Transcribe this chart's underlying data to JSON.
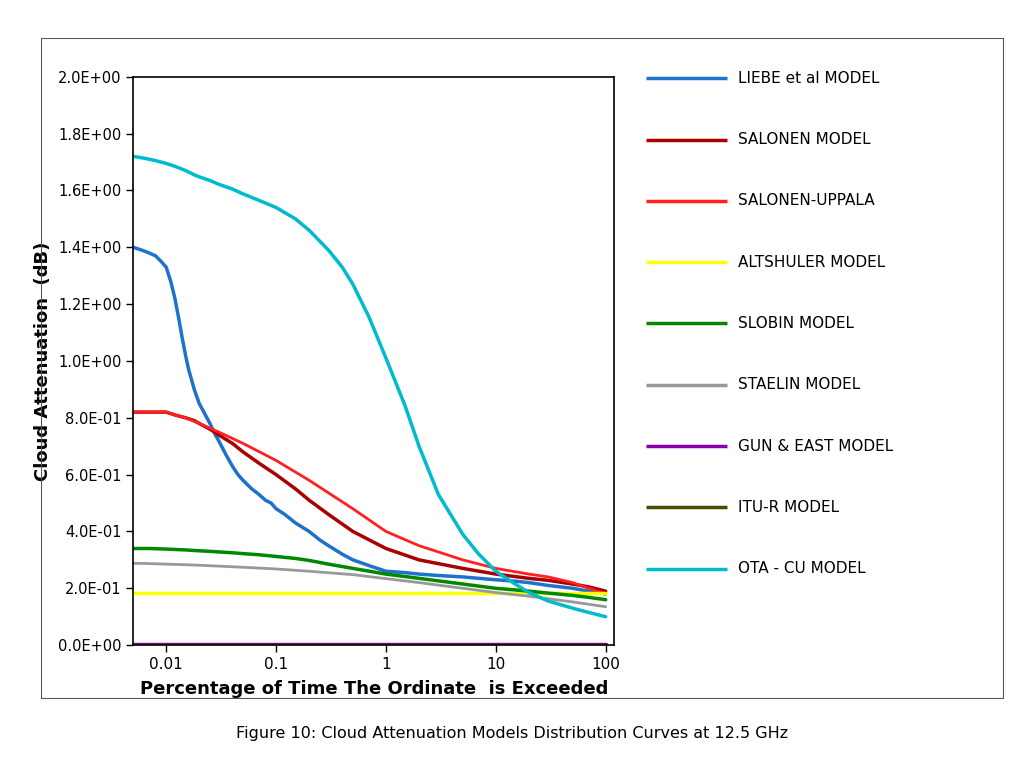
{
  "title": "Figure 10: Cloud Attenuation Models Distribution Curves at 12.5 GHz",
  "xlabel": "Percentage of Time The Ordinate  is Exceeded",
  "ylabel": "Cloud Attenuation  (dB)",
  "ylim": [
    0.0,
    2.0
  ],
  "xlim_plot": [
    0.005,
    120
  ],
  "yticks": [
    0.0,
    0.2,
    0.4,
    0.6,
    0.8,
    1.0,
    1.2,
    1.4,
    1.6,
    1.8,
    2.0
  ],
  "ytick_labels": [
    "0.0E+00",
    "2.0E-01",
    "4.0E-01",
    "6.0E-01",
    "8.0E-01",
    "1.0E+00",
    "1.2E+00",
    "1.4E+00",
    "1.6E+00",
    "1.8E+00",
    "2.0E+00"
  ],
  "xticks": [
    0.01,
    0.1,
    1,
    10,
    100
  ],
  "xtick_labels": [
    "0.01",
    "0.1",
    "1",
    "10",
    "100"
  ],
  "models": [
    {
      "name": "LIEBE et al MODEL",
      "color": "#1F72CC",
      "linewidth": 2.5
    },
    {
      "name": "SALONEN MODEL",
      "color": "#AA0000",
      "linewidth": 2.5
    },
    {
      "name": "SALONEN-UPPALA",
      "color": "#FF2020",
      "linewidth": 2.0
    },
    {
      "name": "ALTSHULER MODEL",
      "color": "#FFFF00",
      "linewidth": 2.5
    },
    {
      "name": "SLOBIN MODEL",
      "color": "#008800",
      "linewidth": 2.5
    },
    {
      "name": "STAELIN MODEL",
      "color": "#999999",
      "linewidth": 2.0
    },
    {
      "name": "GUN & EAST MODEL",
      "color": "#8800AA",
      "linewidth": 2.5
    },
    {
      "name": "ITU-R MODEL",
      "color": "#4B4B00",
      "linewidth": 2.5
    },
    {
      "name": "OTA - CU MODEL",
      "color": "#00BBCC",
      "linewidth": 2.5
    }
  ],
  "liebe_x": [
    0.005,
    0.006,
    0.007,
    0.008,
    0.009,
    0.01,
    0.011,
    0.012,
    0.013,
    0.014,
    0.015,
    0.016,
    0.018,
    0.02,
    0.022,
    0.025,
    0.028,
    0.03,
    0.035,
    0.04,
    0.045,
    0.05,
    0.06,
    0.07,
    0.08,
    0.09,
    0.1,
    0.12,
    0.15,
    0.2,
    0.25,
    0.3,
    0.4,
    0.5,
    0.7,
    1.0,
    1.5,
    2.0,
    3.0,
    5.0,
    7.0,
    10.0,
    15.0,
    20.0,
    30.0,
    50.0,
    70.0,
    100.0
  ],
  "liebe_y": [
    1.4,
    1.39,
    1.38,
    1.37,
    1.35,
    1.33,
    1.28,
    1.22,
    1.15,
    1.08,
    1.02,
    0.97,
    0.9,
    0.85,
    0.82,
    0.78,
    0.74,
    0.72,
    0.67,
    0.63,
    0.6,
    0.58,
    0.55,
    0.53,
    0.51,
    0.5,
    0.48,
    0.46,
    0.43,
    0.4,
    0.37,
    0.35,
    0.32,
    0.3,
    0.28,
    0.26,
    0.255,
    0.25,
    0.245,
    0.24,
    0.235,
    0.23,
    0.225,
    0.22,
    0.21,
    0.2,
    0.19,
    0.18
  ],
  "salonen_x": [
    0.005,
    0.007,
    0.009,
    0.01,
    0.012,
    0.015,
    0.018,
    0.02,
    0.025,
    0.03,
    0.04,
    0.05,
    0.07,
    0.1,
    0.15,
    0.2,
    0.3,
    0.5,
    1.0,
    2.0,
    5.0,
    10.0,
    20.0,
    30.0,
    50.0,
    70.0,
    100.0
  ],
  "salonen_y": [
    0.82,
    0.82,
    0.82,
    0.82,
    0.81,
    0.8,
    0.79,
    0.78,
    0.76,
    0.74,
    0.71,
    0.68,
    0.64,
    0.6,
    0.55,
    0.51,
    0.46,
    0.4,
    0.34,
    0.3,
    0.27,
    0.25,
    0.235,
    0.228,
    0.215,
    0.205,
    0.19
  ],
  "salonenu_x": [
    0.005,
    0.008,
    0.01,
    0.012,
    0.015,
    0.02,
    0.03,
    0.05,
    0.1,
    0.2,
    0.5,
    1.0,
    2.0,
    5.0,
    10.0,
    20.0,
    30.0,
    50.0,
    70.0,
    100.0
  ],
  "salonenu_y": [
    0.82,
    0.82,
    0.82,
    0.81,
    0.8,
    0.78,
    0.75,
    0.71,
    0.65,
    0.58,
    0.48,
    0.4,
    0.35,
    0.3,
    0.27,
    0.25,
    0.24,
    0.22,
    0.2,
    0.18
  ],
  "alts_x": [
    0.005,
    0.01,
    0.05,
    0.1,
    0.5,
    1.0,
    5.0,
    10.0,
    20.0,
    50.0,
    100.0
  ],
  "alts_y": [
    0.185,
    0.185,
    0.185,
    0.185,
    0.185,
    0.185,
    0.185,
    0.185,
    0.185,
    0.185,
    0.185
  ],
  "slobin_x": [
    0.005,
    0.007,
    0.01,
    0.013,
    0.015,
    0.018,
    0.02,
    0.025,
    0.03,
    0.04,
    0.05,
    0.07,
    0.1,
    0.15,
    0.2,
    0.3,
    0.5,
    1.0,
    2.0,
    5.0,
    10.0,
    20.0,
    30.0,
    50.0,
    70.0,
    100.0
  ],
  "slobin_y": [
    0.34,
    0.34,
    0.338,
    0.336,
    0.335,
    0.333,
    0.332,
    0.33,
    0.328,
    0.325,
    0.322,
    0.318,
    0.312,
    0.305,
    0.298,
    0.285,
    0.27,
    0.25,
    0.235,
    0.215,
    0.2,
    0.19,
    0.183,
    0.175,
    0.168,
    0.16
  ],
  "staelin_x": [
    0.005,
    0.007,
    0.01,
    0.015,
    0.02,
    0.03,
    0.05,
    0.1,
    0.2,
    0.5,
    1.0,
    2.0,
    5.0,
    10.0,
    20.0,
    50.0,
    100.0
  ],
  "staelin_y": [
    0.288,
    0.287,
    0.285,
    0.283,
    0.281,
    0.278,
    0.274,
    0.268,
    0.26,
    0.248,
    0.234,
    0.22,
    0.2,
    0.185,
    0.172,
    0.152,
    0.135
  ],
  "guneast_x": [
    0.005,
    0.01,
    0.05,
    0.1,
    0.5,
    1.0,
    5.0,
    10.0,
    20.0,
    50.0,
    70.0,
    100.0
  ],
  "guneast_y": [
    0.003,
    0.003,
    0.003,
    0.003,
    0.003,
    0.003,
    0.003,
    0.003,
    0.003,
    0.003,
    0.003,
    0.003
  ],
  "itur_x": [
    0.005,
    0.01,
    0.05,
    0.1,
    0.5,
    1.0,
    5.0,
    10.0,
    50.0,
    100.0
  ],
  "itur_y": [
    0.001,
    0.001,
    0.001,
    0.001,
    0.001,
    0.001,
    0.001,
    0.001,
    0.001,
    0.001
  ],
  "ota_x": [
    0.005,
    0.006,
    0.007,
    0.008,
    0.009,
    0.01,
    0.012,
    0.014,
    0.016,
    0.018,
    0.02,
    0.025,
    0.03,
    0.04,
    0.05,
    0.07,
    0.1,
    0.15,
    0.2,
    0.3,
    0.4,
    0.5,
    0.7,
    1.0,
    1.5,
    2.0,
    3.0,
    5.0,
    7.0,
    10.0,
    15.0,
    20.0,
    30.0,
    50.0,
    70.0,
    100.0
  ],
  "ota_y": [
    1.72,
    1.715,
    1.71,
    1.705,
    1.7,
    1.695,
    1.685,
    1.675,
    1.665,
    1.655,
    1.648,
    1.635,
    1.622,
    1.605,
    1.588,
    1.565,
    1.54,
    1.5,
    1.46,
    1.39,
    1.33,
    1.27,
    1.155,
    1.01,
    0.84,
    0.7,
    0.53,
    0.39,
    0.32,
    0.26,
    0.215,
    0.185,
    0.155,
    0.13,
    0.115,
    0.1
  ],
  "frame_color": "#555555",
  "bg_outer": "#ffffff"
}
